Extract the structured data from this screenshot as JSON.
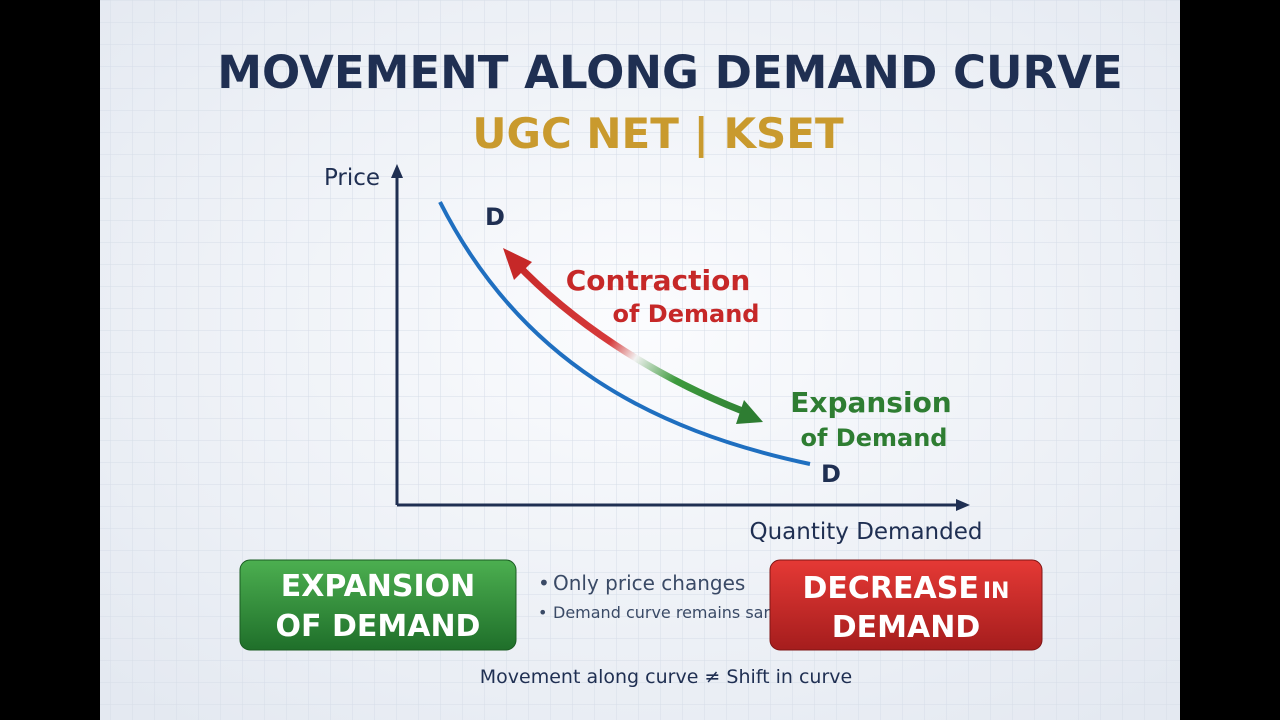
{
  "header": {
    "title": "MOVEMENT ALONG DEMAND CURVE",
    "subtitle": "UGC NET | KSET"
  },
  "graph": {
    "y_axis_label": "Price",
    "x_axis_label": "Quantity Demanded",
    "curve_labels": [
      "D",
      "D"
    ],
    "contraction_label": [
      "Contraction",
      "of Demand"
    ],
    "expansion_label": [
      "Expansion",
      "of Demand"
    ]
  },
  "left_box": {
    "lines": [
      "EXPANSION",
      "OF DEMAND"
    ]
  },
  "bullets": [
    "Only price changes",
    "Demand curve remains same"
  ],
  "right_box": {
    "word": "DECREASE",
    "small": "IN",
    "line2": "DEMAND"
  },
  "footer": "Movement along curve ≠ Shift in curve"
}
